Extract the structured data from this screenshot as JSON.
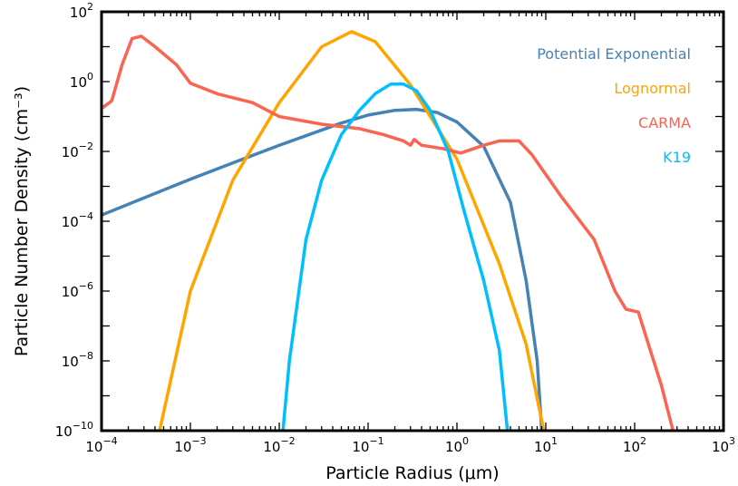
{
  "chart_data": {
    "type": "line",
    "xlabel": "Particle Radius (μm)",
    "ylabel": "Particle Number Density (cm⁻³)",
    "xscale": "log",
    "yscale": "log",
    "xlim": [
      0.0001,
      1000
    ],
    "ylim": [
      1e-10,
      100
    ],
    "grid": false,
    "legend_placement": "top-right",
    "x_ticks": [
      {
        "base": "10",
        "exp": "−4"
      },
      {
        "base": "10",
        "exp": "−3"
      },
      {
        "base": "10",
        "exp": "−2"
      },
      {
        "base": "10",
        "exp": "−1"
      },
      {
        "base": "10",
        "exp": "0"
      },
      {
        "base": "10",
        "exp": "1"
      },
      {
        "base": "10",
        "exp": "2"
      },
      {
        "base": "10",
        "exp": "3"
      }
    ],
    "y_ticks": [
      {
        "base": "10",
        "exp": "−10"
      },
      {
        "base": "10",
        "exp": "−8"
      },
      {
        "base": "10",
        "exp": "−6"
      },
      {
        "base": "10",
        "exp": "−4"
      },
      {
        "base": "10",
        "exp": "−2"
      },
      {
        "base": "10",
        "exp": "0"
      },
      {
        "base": "10",
        "exp": "2"
      }
    ],
    "series": [
      {
        "name": "Potential Exponential",
        "color": "#4682b4",
        "points": [
          [
            0.0001,
            0.00015
          ],
          [
            0.001,
            0.0016
          ],
          [
            0.01,
            0.015
          ],
          [
            0.05,
            0.065
          ],
          [
            0.1,
            0.11
          ],
          [
            0.2,
            0.15
          ],
          [
            0.35,
            0.16
          ],
          [
            0.6,
            0.13
          ],
          [
            1.0,
            0.07
          ],
          [
            2.0,
            0.014
          ],
          [
            4.0,
            0.00035
          ],
          [
            6.0,
            2e-06
          ],
          [
            8.0,
            1e-08
          ],
          [
            9.0,
            1e-10
          ]
        ]
      },
      {
        "name": "Lognormal",
        "color": "#ffa500",
        "points": [
          [
            0.00045,
            1e-10
          ],
          [
            0.001,
            1e-06
          ],
          [
            0.003,
            0.0015
          ],
          [
            0.01,
            0.25
          ],
          [
            0.03,
            10
          ],
          [
            0.065,
            27
          ],
          [
            0.12,
            14
          ],
          [
            0.3,
            0.8
          ],
          [
            1.0,
            0.006
          ],
          [
            3.0,
            6e-06
          ],
          [
            6.0,
            3e-08
          ],
          [
            9.5,
            1e-10
          ]
        ]
      },
      {
        "name": "CARMA",
        "color": "#fa6450",
        "points": [
          [
            0.0001,
            0.17
          ],
          [
            0.00013,
            0.28
          ],
          [
            0.00017,
            3.0
          ],
          [
            0.00022,
            17
          ],
          [
            0.00028,
            20
          ],
          [
            0.0004,
            10
          ],
          [
            0.0007,
            3
          ],
          [
            0.001,
            0.9
          ],
          [
            0.002,
            0.45
          ],
          [
            0.005,
            0.25
          ],
          [
            0.01,
            0.1
          ],
          [
            0.03,
            0.06
          ],
          [
            0.08,
            0.045
          ],
          [
            0.15,
            0.03
          ],
          [
            0.25,
            0.02
          ],
          [
            0.3,
            0.015
          ],
          [
            0.33,
            0.022
          ],
          [
            0.4,
            0.015
          ],
          [
            0.7,
            0.012
          ],
          [
            1.1,
            0.009
          ],
          [
            2.0,
            0.015
          ],
          [
            3.0,
            0.02
          ],
          [
            5.0,
            0.02
          ],
          [
            7.0,
            0.008
          ],
          [
            15,
            0.0005
          ],
          [
            35,
            3e-05
          ],
          [
            60,
            1e-06
          ],
          [
            80,
            3e-07
          ],
          [
            110,
            2.5e-07
          ],
          [
            150,
            2e-08
          ],
          [
            200,
            2e-09
          ],
          [
            270,
            1e-10
          ]
        ]
      },
      {
        "name": "K19",
        "color": "#00bfff",
        "points": [
          [
            0.011,
            1e-10
          ],
          [
            0.013,
            1e-08
          ],
          [
            0.02,
            3e-05
          ],
          [
            0.03,
            0.0015
          ],
          [
            0.05,
            0.03
          ],
          [
            0.08,
            0.15
          ],
          [
            0.12,
            0.45
          ],
          [
            0.18,
            0.85
          ],
          [
            0.25,
            0.85
          ],
          [
            0.35,
            0.55
          ],
          [
            0.5,
            0.15
          ],
          [
            0.8,
            0.01
          ],
          [
            1.2,
            0.0002
          ],
          [
            2.0,
            2e-06
          ],
          [
            3.0,
            2e-08
          ],
          [
            3.7,
            1e-10
          ]
        ]
      }
    ]
  }
}
